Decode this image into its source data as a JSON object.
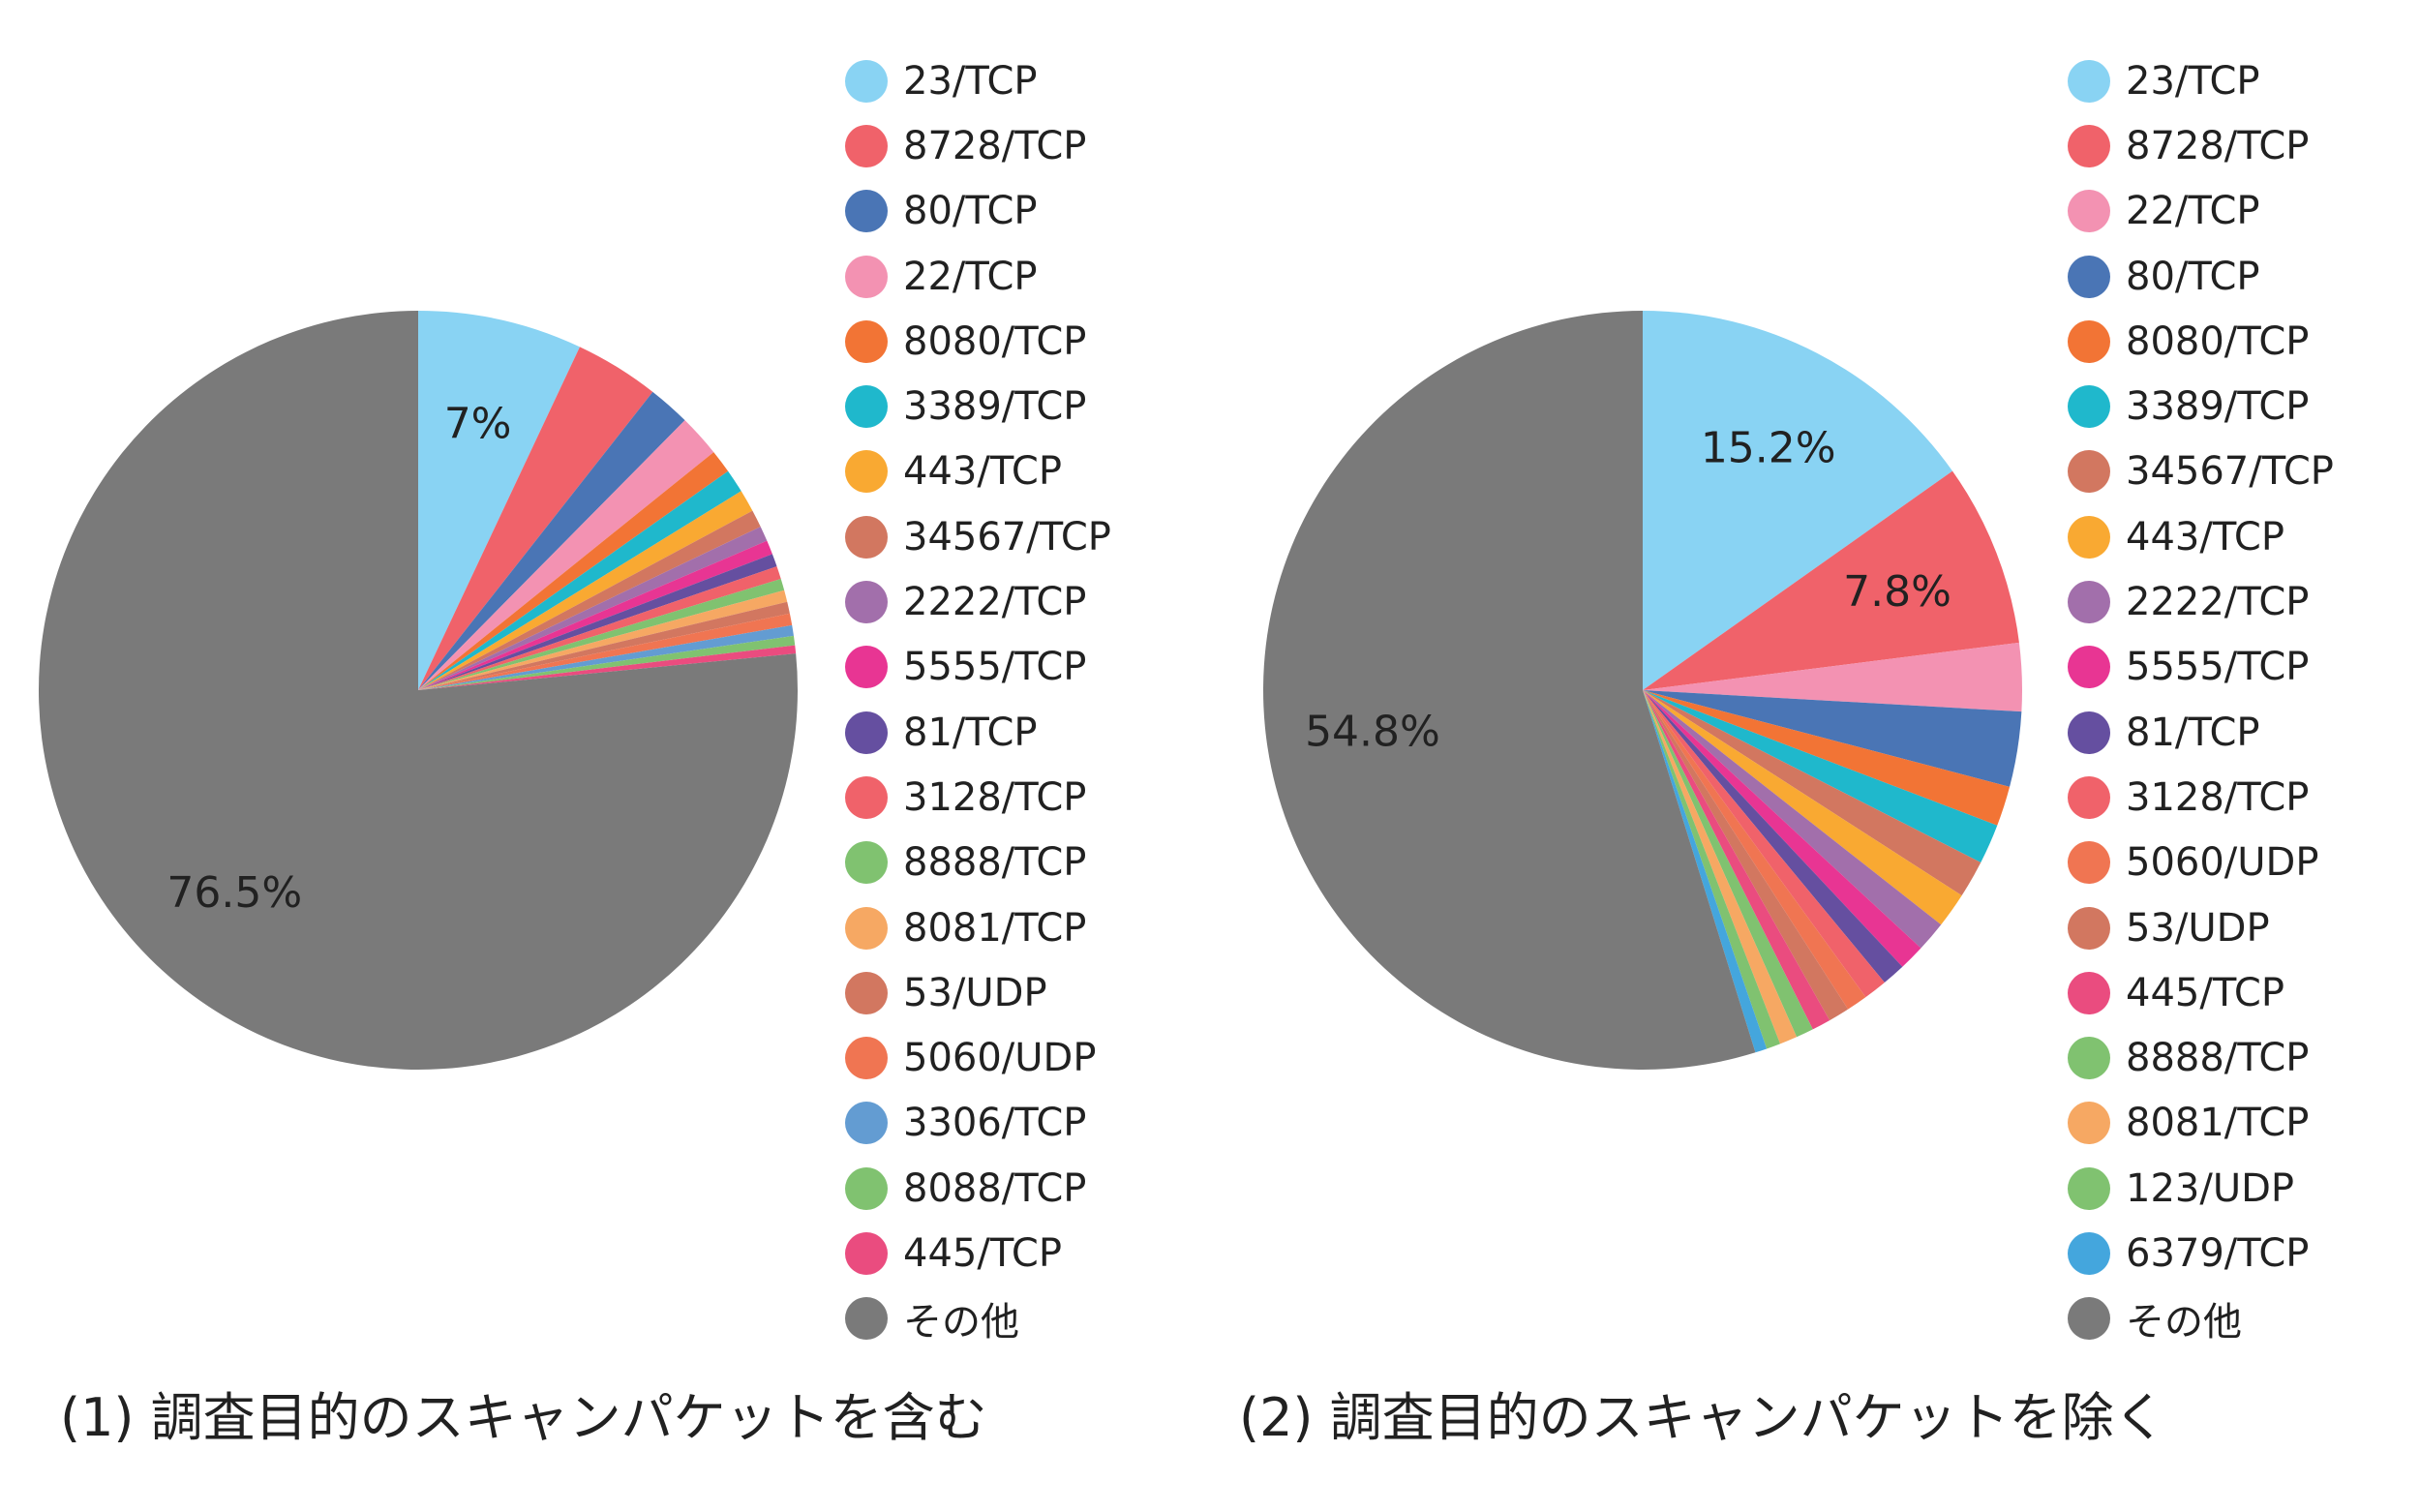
{
  "chart_data": [
    {
      "type": "pie",
      "caption": "(1) 調査目的のスキャンパケットを含む",
      "legend_position": "right",
      "slices": [
        {
          "name": "23/TCP",
          "value": 7,
          "color": "#89d3f3",
          "label": "7%"
        },
        {
          "name": "8728/TCP",
          "value": 3.6,
          "color": "#f0626a"
        },
        {
          "name": "80/TCP",
          "value": 1.8,
          "color": "#4a75b5"
        },
        {
          "name": "22/TCP",
          "value": 1.8,
          "color": "#f392b2"
        },
        {
          "name": "8080/TCP",
          "value": 1.0,
          "color": "#f27435"
        },
        {
          "name": "3389/TCP",
          "value": 1.0,
          "color": "#1fb8cc"
        },
        {
          "name": "443/TCP",
          "value": 0.95,
          "color": "#f9a932"
        },
        {
          "name": "34567/TCP",
          "value": 0.75,
          "color": "#d27760"
        },
        {
          "name": "2222/TCP",
          "value": 0.65,
          "color": "#a26fab"
        },
        {
          "name": "5555/TCP",
          "value": 0.6,
          "color": "#e83593"
        },
        {
          "name": "81/TCP",
          "value": 0.55,
          "color": "#654fa0"
        },
        {
          "name": "3128/TCP",
          "value": 0.55,
          "color": "#f0626a"
        },
        {
          "name": "8888/TCP",
          "value": 0.5,
          "color": "#80c270"
        },
        {
          "name": "8081/TCP",
          "value": 0.5,
          "color": "#f6a863"
        },
        {
          "name": "53/UDP",
          "value": 0.5,
          "color": "#d27760"
        },
        {
          "name": "5060/UDP",
          "value": 0.5,
          "color": "#f07552"
        },
        {
          "name": "3306/TCP",
          "value": 0.45,
          "color": "#639cd2"
        },
        {
          "name": "8088/TCP",
          "value": 0.4,
          "color": "#80c270"
        },
        {
          "name": "445/TCP",
          "value": 0.35,
          "color": "#ea4c7f"
        },
        {
          "name": "その他",
          "value": 76.5,
          "color": "#7a7a7a",
          "label": "76.5%"
        }
      ]
    },
    {
      "type": "pie",
      "caption": "(2) 調査目的のスキャンパケットを除く",
      "legend_position": "right",
      "slices": [
        {
          "name": "23/TCP",
          "value": 15.2,
          "color": "#89d3f3",
          "label": "15.2%"
        },
        {
          "name": "8728/TCP",
          "value": 7.8,
          "color": "#f0626a",
          "label": "7.8%"
        },
        {
          "name": "22/TCP",
          "value": 2.9,
          "color": "#f392b2"
        },
        {
          "name": "80/TCP",
          "value": 3.2,
          "color": "#4a75b5"
        },
        {
          "name": "8080/TCP",
          "value": 1.7,
          "color": "#f27435"
        },
        {
          "name": "3389/TCP",
          "value": 1.7,
          "color": "#1fb8cc"
        },
        {
          "name": "34567/TCP",
          "value": 1.6,
          "color": "#d27760"
        },
        {
          "name": "443/TCP",
          "value": 1.5,
          "color": "#f9a932"
        },
        {
          "name": "2222/TCP",
          "value": 1.3,
          "color": "#a26fab"
        },
        {
          "name": "5555/TCP",
          "value": 1.1,
          "color": "#e83593"
        },
        {
          "name": "81/TCP",
          "value": 1.0,
          "color": "#654fa0"
        },
        {
          "name": "3128/TCP",
          "value": 1.0,
          "color": "#f0626a"
        },
        {
          "name": "5060/UDP",
          "value": 0.9,
          "color": "#f07552"
        },
        {
          "name": "53/UDP",
          "value": 0.9,
          "color": "#d27760"
        },
        {
          "name": "445/TCP",
          "value": 0.8,
          "color": "#ea4c7f"
        },
        {
          "name": "8888/TCP",
          "value": 0.75,
          "color": "#80c270"
        },
        {
          "name": "8081/TCP",
          "value": 0.75,
          "color": "#f6a863"
        },
        {
          "name": "123/UDP",
          "value": 0.6,
          "color": "#80c270"
        },
        {
          "name": "6379/TCP",
          "value": 0.5,
          "color": "#44a6dd"
        },
        {
          "name": "その他",
          "value": 54.8,
          "color": "#7a7a7a",
          "label": "54.8%"
        }
      ]
    }
  ]
}
